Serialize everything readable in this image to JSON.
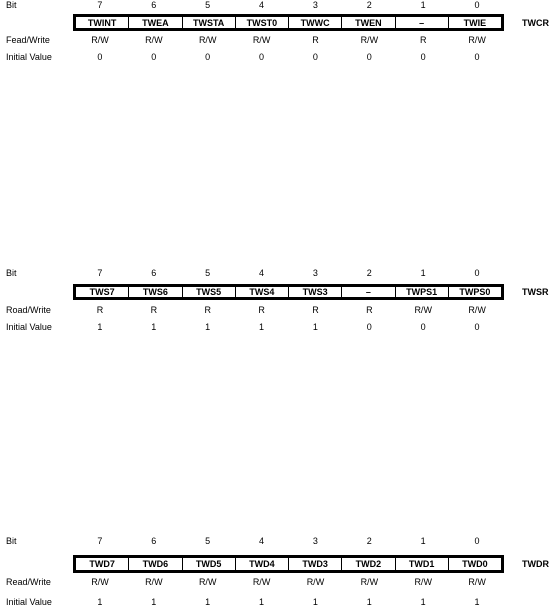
{
  "registers": [
    {
      "name": "TWCR",
      "bit_label": "Bit",
      "bits": [
        "7",
        "6",
        "5",
        "4",
        "3",
        "2",
        "1",
        "0"
      ],
      "fields": [
        "TWINT",
        "TWEA",
        "TWSTA",
        "TWST0",
        "TWWC",
        "TWEN",
        "–",
        "TWIE"
      ],
      "rw_label": "Fead/Write",
      "rw": [
        "R/W",
        "R/W",
        "R/W",
        "R/W",
        "R",
        "R/W",
        "R",
        "R/W"
      ],
      "init_label": "Initial Value",
      "init": [
        "0",
        "0",
        "0",
        "0",
        "0",
        "0",
        "0",
        "0"
      ]
    },
    {
      "name": "TWSR",
      "bit_label": "Bit",
      "bits": [
        "7",
        "6",
        "5",
        "4",
        "3",
        "2",
        "1",
        "0"
      ],
      "fields": [
        "TWS7",
        "TWS6",
        "TWS5",
        "TWS4",
        "TWS3",
        "–",
        "TWPS1",
        "TWPS0"
      ],
      "rw_label": "Road/Write",
      "rw": [
        "R",
        "R",
        "R",
        "R",
        "R",
        "R",
        "R/W",
        "R/W"
      ],
      "init_label": "Initial Value",
      "init": [
        "1",
        "1",
        "1",
        "1",
        "1",
        "0",
        "0",
        "0"
      ]
    },
    {
      "name": "TWDR",
      "bit_label": "Bit",
      "bits": [
        "7",
        "6",
        "5",
        "4",
        "3",
        "2",
        "1",
        "0"
      ],
      "fields": [
        "TWD7",
        "TWD6",
        "TWD5",
        "TWD4",
        "TWD3",
        "TWD2",
        "TWD1",
        "TWD0"
      ],
      "rw_label": "Read/Write",
      "rw": [
        "R/W",
        "R/W",
        "R/W",
        "R/W",
        "R/W",
        "R/W",
        "R/W",
        "R/W"
      ],
      "init_label": "Initial Value",
      "init": [
        "1",
        "1",
        "1",
        "1",
        "1",
        "1",
        "1",
        "1"
      ]
    }
  ]
}
